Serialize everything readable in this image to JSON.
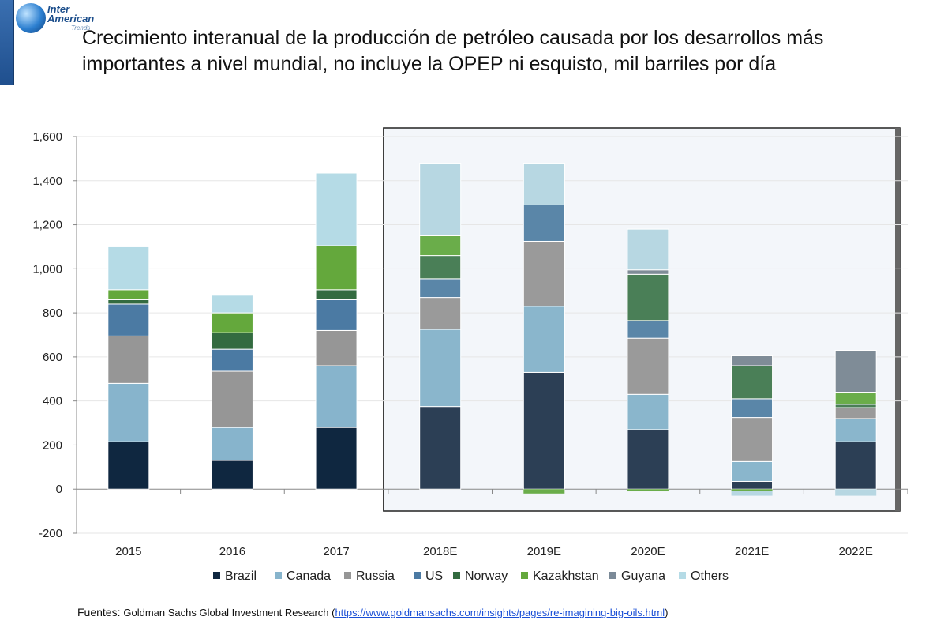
{
  "logo": {
    "line1": "Inter",
    "line2": "American",
    "line3": "Trends"
  },
  "title": "Crecimiento interanual de la producción de petróleo causada por los desarrollos más importantes a nivel mundial, no incluye la OPEP ni esquisto, mil barriles por día",
  "footer": {
    "label": "Fuentes:",
    "source": "Goldman Sachs Global Investment Research (",
    "link": "https://www.goldmansachs.com/insights/pages/re-imagining-big-oils.html",
    "close": ")"
  },
  "chart_data": {
    "type": "bar",
    "stacked": true,
    "categories": [
      "2015",
      "2016",
      "2017",
      "2018E",
      "2019E",
      "2020E",
      "2021E",
      "2022E"
    ],
    "ylim": [
      -200,
      1600
    ],
    "yticks": [
      -200,
      0,
      200,
      400,
      600,
      800,
      1000,
      1200,
      1400,
      1600
    ],
    "ytick_labels": [
      "-200",
      "0",
      "200",
      "400",
      "600",
      "800",
      "1,000",
      "1,200",
      "1,400",
      "1,600"
    ],
    "grid": true,
    "legend_position": "bottom",
    "highlight_categories": [
      "2018E",
      "2019E",
      "2020E",
      "2021E",
      "2022E"
    ],
    "series": [
      {
        "name": "Brazil",
        "color": "#0f2740",
        "color_forecast": "#2c3f55",
        "values": [
          215,
          130,
          280,
          375,
          530,
          270,
          35,
          215
        ]
      },
      {
        "name": "Canada",
        "color": "#87b4cc",
        "color_forecast": "#8ab6cc",
        "values": [
          265,
          150,
          280,
          350,
          300,
          160,
          90,
          105
        ]
      },
      {
        "name": "Russia",
        "color": "#969696",
        "color_forecast": "#9a9a9a",
        "values": [
          215,
          255,
          160,
          145,
          295,
          255,
          200,
          50
        ]
      },
      {
        "name": "US",
        "color": "#4b7aa3",
        "color_forecast": "#5a86a8",
        "values": [
          145,
          100,
          140,
          85,
          165,
          80,
          85,
          0
        ]
      },
      {
        "name": "Norway",
        "color": "#336b40",
        "color_forecast": "#4a7f57",
        "values": [
          20,
          75,
          45,
          105,
          0,
          210,
          150,
          15
        ]
      },
      {
        "name": "Kazakhstan",
        "color": "#64a83c",
        "color_forecast": "#6aad4a",
        "values": [
          45,
          90,
          200,
          90,
          0,
          0,
          0,
          55
        ]
      },
      {
        "name": "Guyana",
        "color": "#7b8a98",
        "color_forecast": "#7f8c97",
        "values": [
          0,
          0,
          0,
          0,
          0,
          20,
          45,
          190
        ]
      },
      {
        "name": "Others",
        "color": "#b5dbe6",
        "color_forecast": "#b7d7e2",
        "values": [
          195,
          80,
          330,
          330,
          190,
          185,
          0,
          0
        ]
      }
    ],
    "negatives": [
      {
        "category": "2019E",
        "series": "Kazakhstan",
        "value": -20
      },
      {
        "category": "2020E",
        "series": "Kazakhstan",
        "value": -10
      },
      {
        "category": "2021E",
        "series": "Kazakhstan",
        "value": -10
      },
      {
        "category": "2021E",
        "series": "Others",
        "value": -20
      },
      {
        "category": "2022E",
        "series": "Others",
        "value": -30
      }
    ]
  }
}
